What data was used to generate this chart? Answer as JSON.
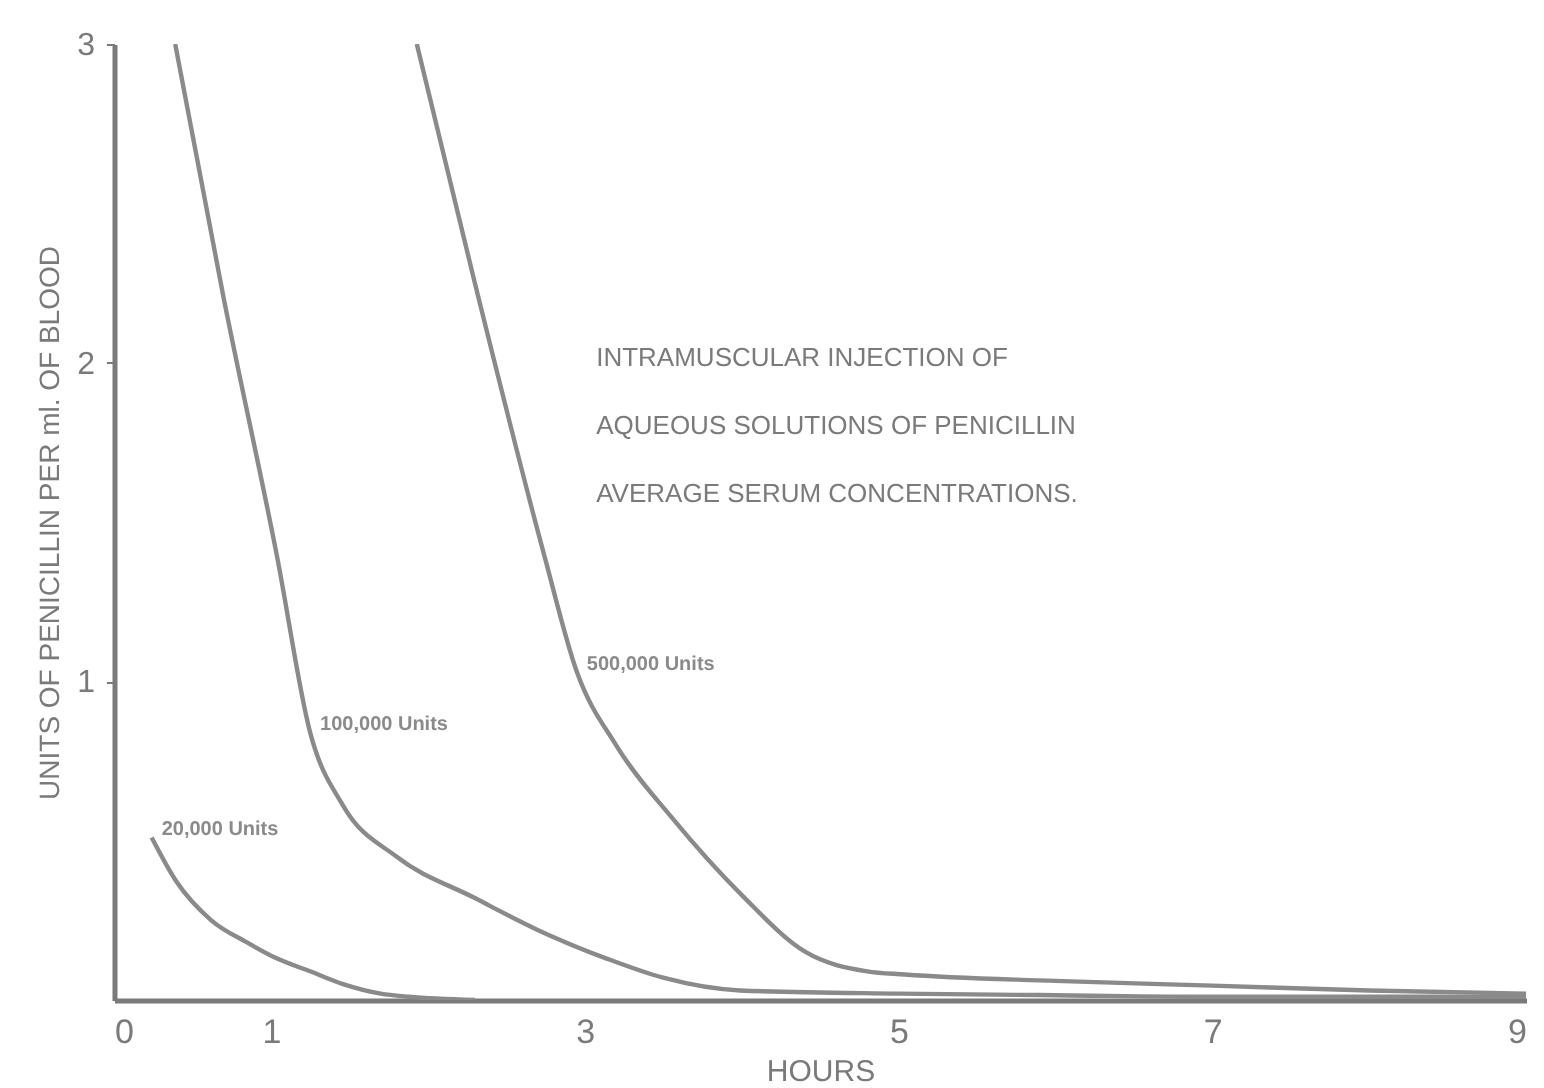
{
  "chart_data": {
    "type": "line",
    "title": [
      "INTRAMUSCULAR INJECTION OF",
      "AQUEOUS SOLUTIONS OF PENICILLIN",
      "AVERAGE SERUM CONCENTRATIONS."
    ],
    "xlabel": "HOURS",
    "ylabel": "UNITS OF PENICILLIN PER ml. OF BLOOD",
    "xlim": [
      0,
      9
    ],
    "xticks": [
      0,
      1,
      3,
      5,
      7,
      9
    ],
    "ylim": [
      0,
      3
    ],
    "yticks": [
      1,
      2,
      3
    ],
    "grid": false,
    "legend": false,
    "marker": "none",
    "line_style": "solid",
    "series": [
      {
        "name": "20,000 Units",
        "color": "#8a8a8a",
        "x": [
          0.24,
          0.4,
          0.62,
          0.85,
          1.04,
          1.25,
          1.46,
          1.7,
          1.88,
          2.3
        ],
        "values": [
          0.51,
          0.37,
          0.25,
          0.18,
          0.13,
          0.09,
          0.05,
          0.02,
          0.01,
          0.0
        ]
      },
      {
        "name": "100,000 Units",
        "color": "#8a8a8a",
        "x": [
          0.39,
          0.7,
          1.04,
          1.25,
          1.46,
          1.8,
          2.3,
          2.7,
          3.14,
          3.5,
          3.99,
          5,
          6,
          7,
          8,
          9
        ],
        "values": [
          3.0,
          2.2,
          1.39,
          0.84,
          0.61,
          0.45,
          0.32,
          0.22,
          0.13,
          0.07,
          0.03,
          0.02,
          0.015,
          0.01,
          0.01,
          0.01
        ]
      },
      {
        "name": "500,000 Units",
        "color": "#8a8a8a",
        "x": [
          1.93,
          2.3,
          2.74,
          2.95,
          3.2,
          3.56,
          4.0,
          4.41,
          4.8,
          5.04,
          6,
          7,
          8,
          9
        ],
        "values": [
          3.0,
          2.25,
          1.4,
          1.03,
          0.8,
          0.57,
          0.33,
          0.15,
          0.09,
          0.08,
          0.06,
          0.045,
          0.03,
          0.02
        ]
      }
    ]
  }
}
